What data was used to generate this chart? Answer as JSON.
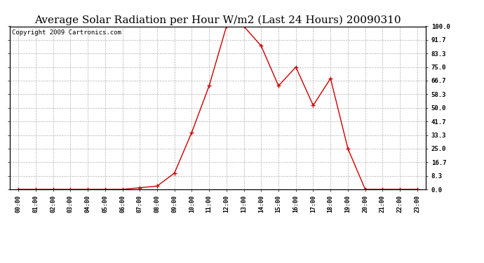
{
  "title": "Average Solar Radiation per Hour W/m2 (Last 24 Hours) 20090310",
  "copyright": "Copyright 2009 Cartronics.com",
  "hours": [
    0,
    1,
    2,
    3,
    4,
    5,
    6,
    7,
    8,
    9,
    10,
    11,
    12,
    13,
    14,
    15,
    16,
    17,
    18,
    19,
    20,
    21,
    22,
    23
  ],
  "values": [
    0.0,
    0.0,
    0.0,
    0.0,
    0.0,
    0.0,
    0.0,
    1.0,
    2.0,
    10.0,
    35.0,
    63.5,
    100.0,
    100.0,
    88.0,
    63.5,
    75.0,
    51.5,
    68.0,
    25.0,
    0.0,
    0.0,
    0.0,
    0.0
  ],
  "line_color": "#cc0000",
  "marker_color": "#cc0000",
  "bg_color": "#ffffff",
  "plot_bg_color": "#ffffff",
  "grid_color": "#aaaaaa",
  "ymin": 0.0,
  "ymax": 100.0,
  "yticks": [
    0.0,
    8.3,
    16.7,
    25.0,
    33.3,
    41.7,
    50.0,
    58.3,
    66.7,
    75.0,
    83.3,
    91.7,
    100.0
  ],
  "title_fontsize": 11,
  "copyright_fontsize": 6.5
}
